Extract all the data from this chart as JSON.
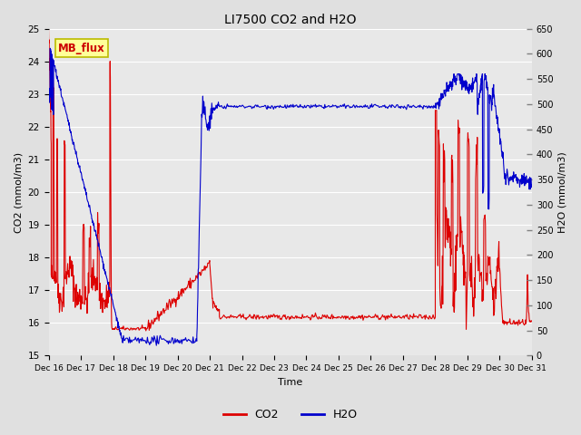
{
  "title": "LI7500 CO2 and H2O",
  "xlabel": "Time",
  "ylabel_left": "CO2 (mmol/m3)",
  "ylabel_right": "H2O (mmol/m3)",
  "ylim_left": [
    15.0,
    25.0
  ],
  "ylim_right": [
    0,
    650
  ],
  "yticks_left": [
    15.0,
    16.0,
    17.0,
    18.0,
    19.0,
    20.0,
    21.0,
    22.0,
    23.0,
    24.0,
    25.0
  ],
  "yticks_right": [
    0,
    50,
    100,
    150,
    200,
    250,
    300,
    350,
    400,
    450,
    500,
    550,
    600,
    650
  ],
  "xtick_labels": [
    "Dec 16",
    "Dec 17",
    "Dec 18",
    "Dec 19",
    "Dec 20",
    "Dec 21",
    "Dec 22",
    "Dec 23",
    "Dec 24",
    "Dec 25",
    "Dec 26",
    "Dec 27",
    "Dec 28",
    "Dec 29",
    "Dec 30",
    "Dec 31"
  ],
  "background_color": "#e0e0e0",
  "axes_bg_color": "#e8e8e8",
  "grid_color": "#ffffff",
  "co2_color": "#dd0000",
  "h2o_color": "#0000cc",
  "annotation_text": "MB_flux",
  "annotation_color": "#cc0000",
  "annotation_bg": "#ffff99",
  "annotation_border": "#bbbb00",
  "legend_co2": "CO2",
  "legend_h2o": "H2O"
}
